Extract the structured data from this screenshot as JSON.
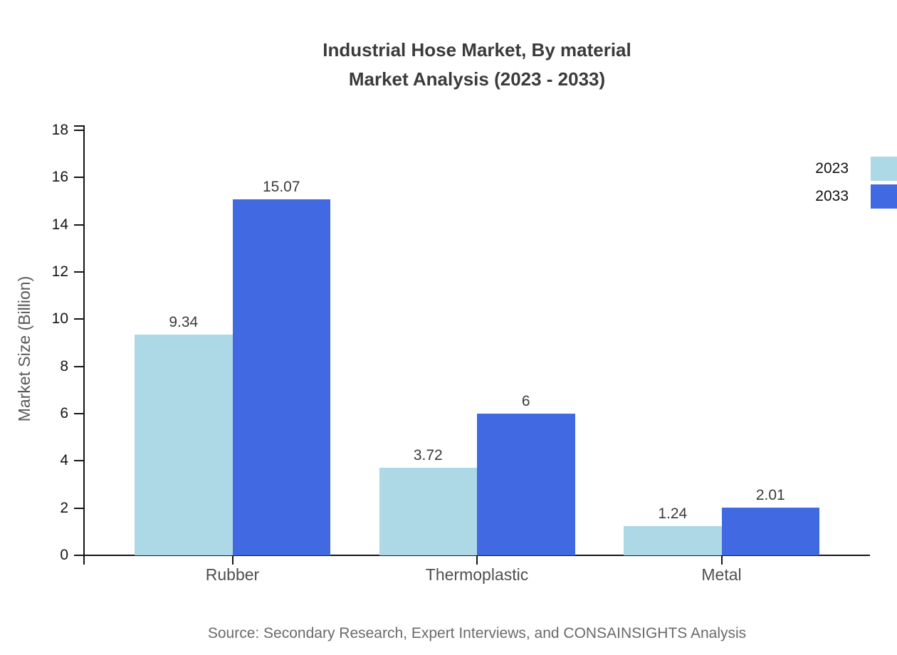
{
  "chart_data": {
    "type": "bar",
    "title_line1": "Industrial Hose Market, By material",
    "title_line2": "Market Analysis (2023 - 2033)",
    "ylabel": "Market Size (Billion)",
    "xlabel": "",
    "categories": [
      "Rubber",
      "Thermoplastic",
      "Metal"
    ],
    "series": [
      {
        "name": "2023",
        "color": "#add8e6",
        "values": [
          9.34,
          3.72,
          1.24
        ],
        "labels": [
          "9.34",
          "3.72",
          "1.24"
        ]
      },
      {
        "name": "2033",
        "color": "#4169e1",
        "values": [
          15.07,
          6,
          2.01
        ],
        "labels": [
          "15.07",
          "6",
          "2.01"
        ]
      }
    ],
    "y_axis": {
      "min": 0,
      "max": 18,
      "step": 2
    },
    "ylim": [
      0,
      18
    ],
    "grid": false,
    "legend_position": "top-right",
    "source": "Source: Secondary Research, Expert Interviews, and CONSAINSIGHTS Analysis"
  }
}
